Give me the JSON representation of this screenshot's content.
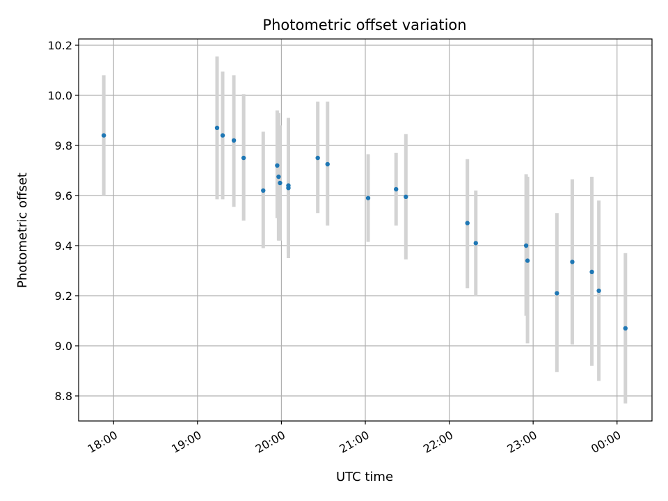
{
  "chart_data": {
    "type": "scatter",
    "title": "Photometric offset variation",
    "xlabel": "UTC time",
    "ylabel": "Photometric offset",
    "xlim": [
      "17:35",
      "00:25"
    ],
    "ylim": [
      8.7,
      10.225
    ],
    "grid": true,
    "x_ticks": [
      "18:00",
      "19:00",
      "20:00",
      "21:00",
      "22:00",
      "23:00",
      "00:00"
    ],
    "y_ticks": [
      8.8,
      9.0,
      9.2,
      9.4,
      9.6,
      9.8,
      10.0,
      10.2
    ],
    "y_tick_labels": [
      "8.8",
      "9.0",
      "9.2",
      "9.4",
      "9.6",
      "9.8",
      "10.0",
      "10.2"
    ],
    "colors": {
      "marker": "#1f77b4",
      "errorbar": "#d3d3d3",
      "grid": "#b0b0b0"
    },
    "points": [
      {
        "x": "17:53",
        "y": 9.84,
        "ymin": 9.6,
        "ymax": 10.08
      },
      {
        "x": "19:14",
        "y": 9.87,
        "ymin": 9.585,
        "ymax": 10.155
      },
      {
        "x": "19:18",
        "y": 9.84,
        "ymin": 9.585,
        "ymax": 10.095
      },
      {
        "x": "19:26",
        "y": 9.82,
        "ymin": 9.555,
        "ymax": 10.08
      },
      {
        "x": "19:33",
        "y": 9.75,
        "ymin": 9.5,
        "ymax": 10.005
      },
      {
        "x": "19:47",
        "y": 9.62,
        "ymin": 9.39,
        "ymax": 9.855
      },
      {
        "x": "19:57",
        "y": 9.72,
        "ymin": 9.51,
        "ymax": 9.94
      },
      {
        "x": "19:58",
        "y": 9.675,
        "ymin": 9.42,
        "ymax": 9.93
      },
      {
        "x": "19:59",
        "y": 9.65,
        "ymin": 9.42,
        "ymax": 9.88
      },
      {
        "x": "20:05",
        "y": 9.63,
        "ymin": 9.35,
        "ymax": 9.91
      },
      {
        "x": "20:05",
        "y": 9.64,
        "ymin": 9.37,
        "ymax": 9.905
      },
      {
        "x": "20:26",
        "y": 9.75,
        "ymin": 9.53,
        "ymax": 9.975
      },
      {
        "x": "20:33",
        "y": 9.725,
        "ymin": 9.48,
        "ymax": 9.975
      },
      {
        "x": "21:02",
        "y": 9.59,
        "ymin": 9.415,
        "ymax": 9.765
      },
      {
        "x": "21:22",
        "y": 9.625,
        "ymin": 9.48,
        "ymax": 9.77
      },
      {
        "x": "21:29",
        "y": 9.595,
        "ymin": 9.345,
        "ymax": 9.845
      },
      {
        "x": "22:13",
        "y": 9.49,
        "ymin": 9.23,
        "ymax": 9.745
      },
      {
        "x": "22:19",
        "y": 9.41,
        "ymin": 9.2,
        "ymax": 9.62
      },
      {
        "x": "22:55",
        "y": 9.4,
        "ymin": 9.12,
        "ymax": 9.685
      },
      {
        "x": "22:56",
        "y": 9.34,
        "ymin": 9.01,
        "ymax": 9.675
      },
      {
        "x": "23:17",
        "y": 9.21,
        "ymin": 8.895,
        "ymax": 9.53
      },
      {
        "x": "23:28",
        "y": 9.335,
        "ymin": 9.005,
        "ymax": 9.665
      },
      {
        "x": "23:42",
        "y": 9.295,
        "ymin": 8.92,
        "ymax": 9.675
      },
      {
        "x": "23:47",
        "y": 9.22,
        "ymin": 8.86,
        "ymax": 9.58
      },
      {
        "x": "00:06",
        "y": 9.07,
        "ymin": 8.77,
        "ymax": 9.37
      }
    ]
  }
}
